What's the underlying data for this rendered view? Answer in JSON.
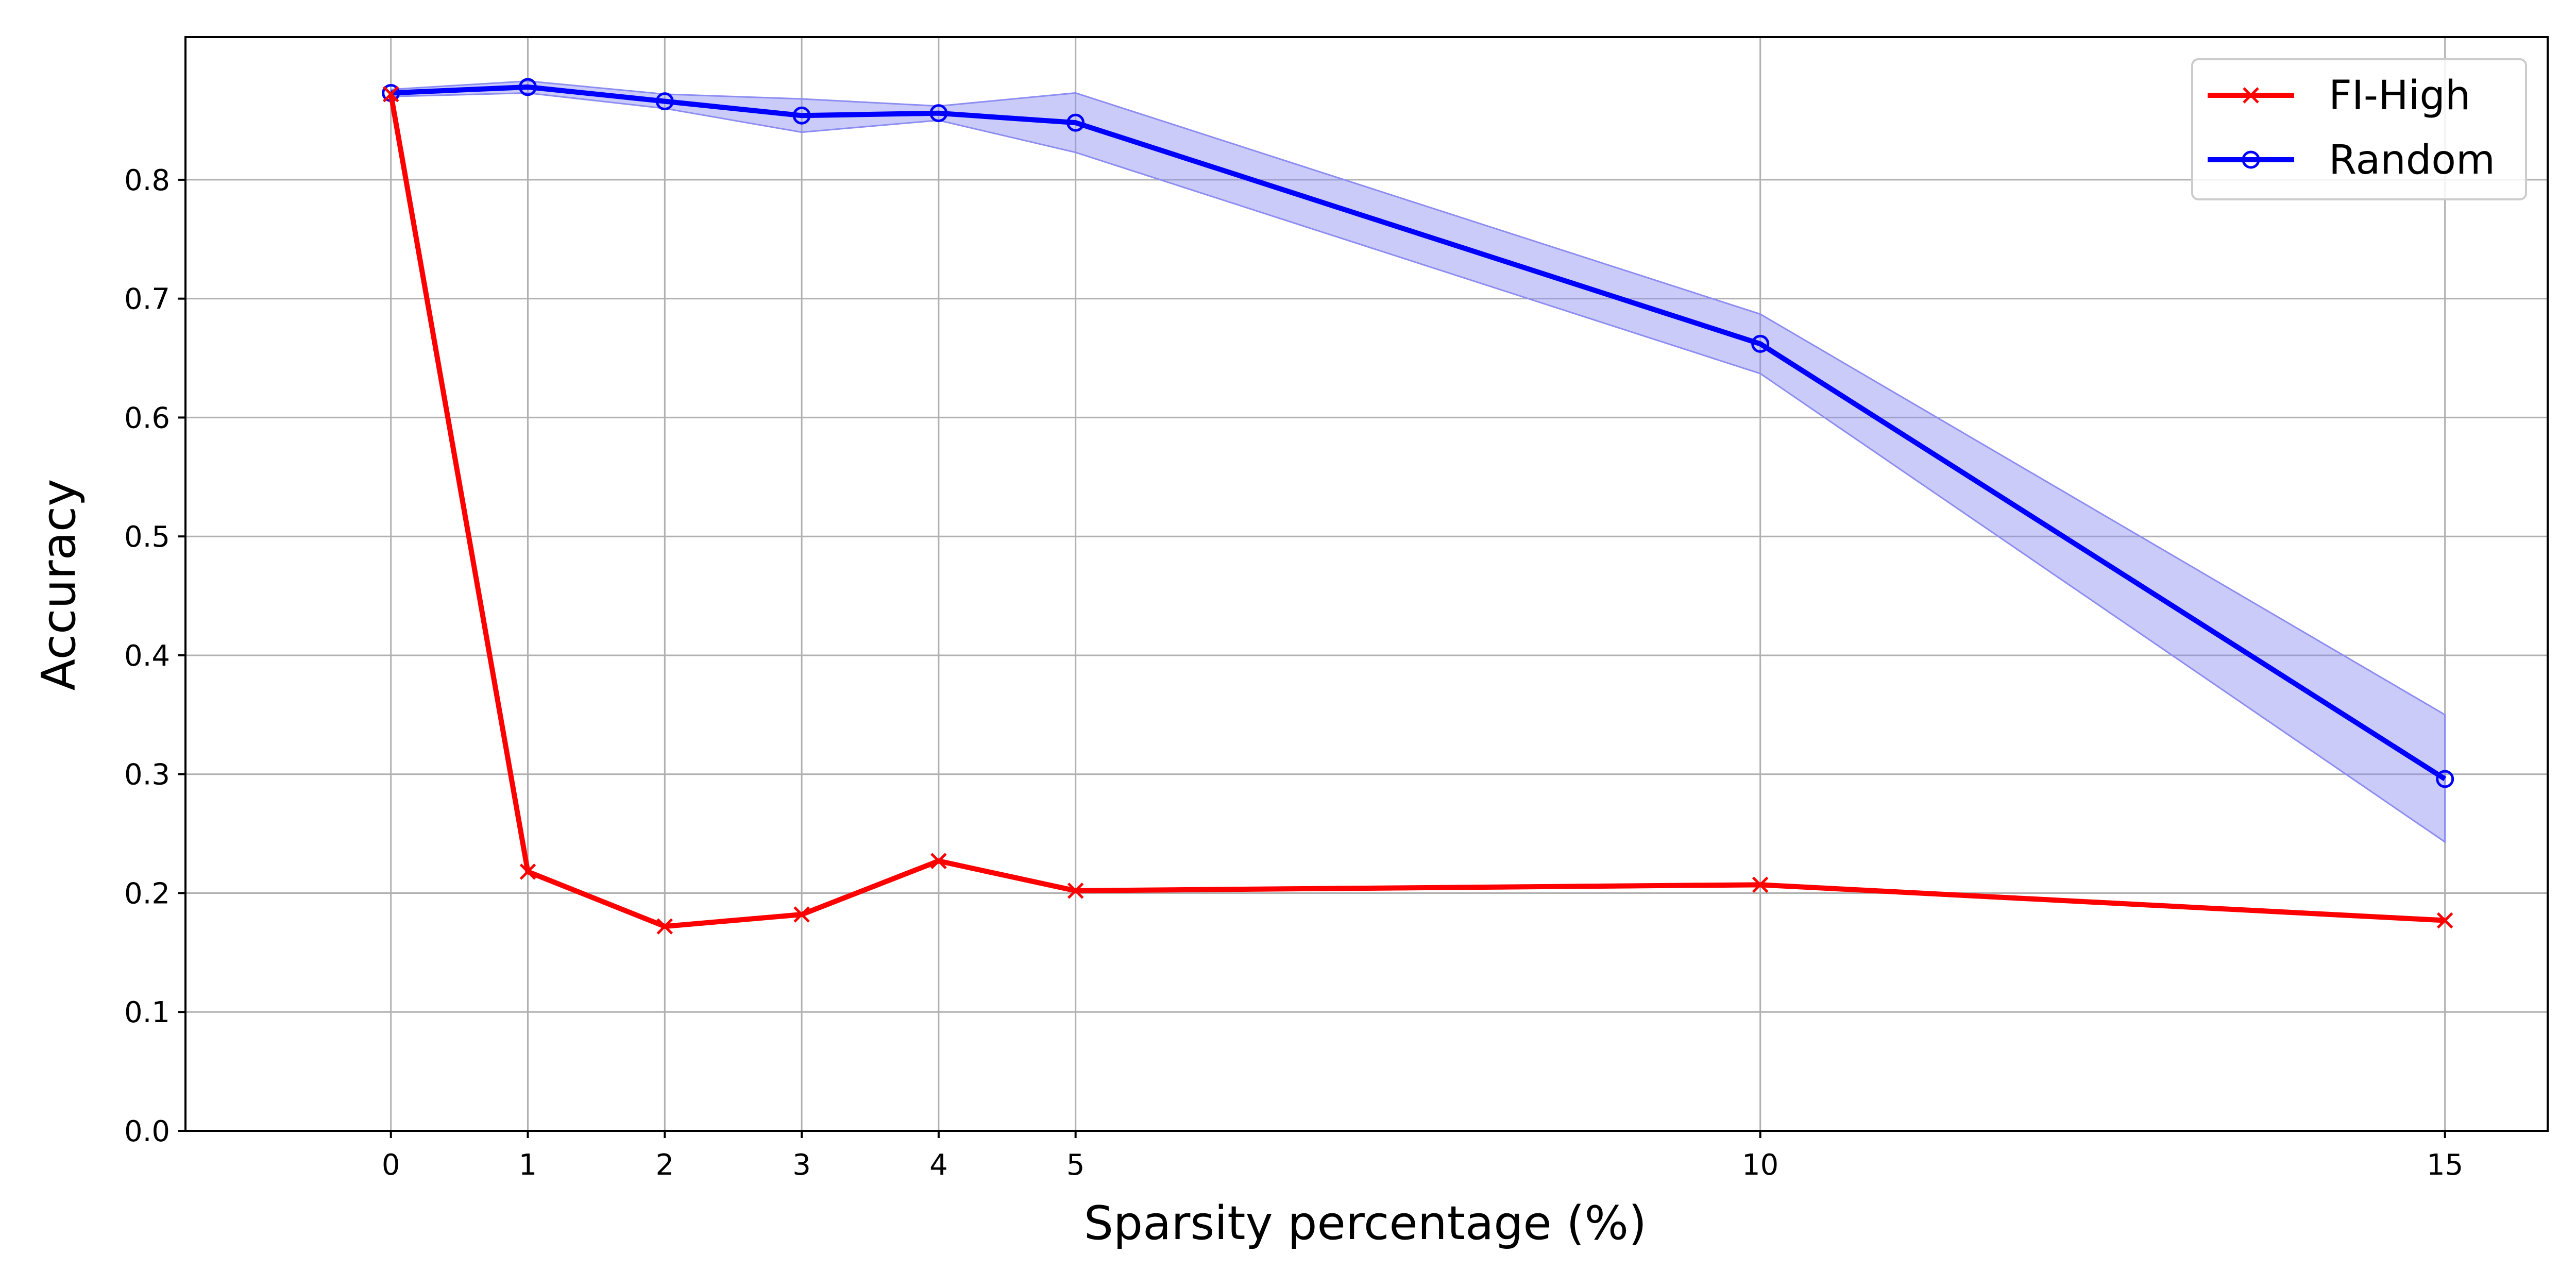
{
  "chart_data": {
    "type": "line",
    "title": "",
    "xlabel": "Sparsity percentage (%)",
    "ylabel": "Accuracy",
    "xlim": [
      -1.5,
      15.75
    ],
    "ylim": [
      0.0,
      0.92
    ],
    "xticks": [
      0,
      1,
      2,
      3,
      4,
      5,
      10,
      15
    ],
    "yticks": [
      0.0,
      0.1,
      0.2,
      0.3,
      0.4,
      0.5,
      0.6,
      0.7,
      0.8
    ],
    "grid": true,
    "legend_position": "top-right",
    "x": [
      0,
      1,
      2,
      3,
      4,
      5,
      10,
      15
    ],
    "series": [
      {
        "name": "FI-High",
        "color": "#ff0000",
        "marker": "x",
        "values": [
          0.872,
          0.218,
          0.172,
          0.182,
          0.227,
          0.202,
          0.207,
          0.177
        ]
      },
      {
        "name": "Random",
        "color": "#0000ff",
        "marker": "circle",
        "values": [
          0.873,
          0.878,
          0.866,
          0.854,
          0.856,
          0.848,
          0.662,
          0.296
        ],
        "band_lower": [
          0.87,
          0.873,
          0.86,
          0.84,
          0.85,
          0.823,
          0.637,
          0.243
        ],
        "band_upper": [
          0.876,
          0.883,
          0.872,
          0.868,
          0.862,
          0.873,
          0.687,
          0.35
        ],
        "band_color": "#8c8cf2"
      }
    ]
  }
}
